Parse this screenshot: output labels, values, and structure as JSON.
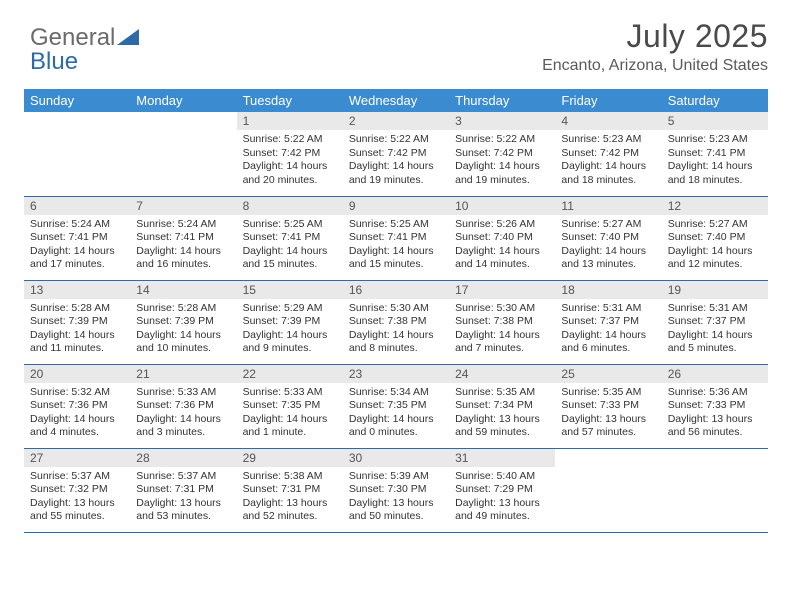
{
  "logo": {
    "word1": "General",
    "word2": "Blue",
    "word1_color": "#6a6a6a",
    "word2_color": "#2f6aa8",
    "triangle_color": "#2f6aa8"
  },
  "header": {
    "title": "July 2025",
    "subtitle": "Encanto, Arizona, United States"
  },
  "colors": {
    "header_bg": "#3b8bd0",
    "header_fg": "#ffffff",
    "daynum_bg": "#e9e9e9",
    "rule": "#2f6aa8"
  },
  "weekdays": [
    "Sunday",
    "Monday",
    "Tuesday",
    "Wednesday",
    "Thursday",
    "Friday",
    "Saturday"
  ],
  "leading_blanks": 2,
  "days": [
    {
      "n": "1",
      "sr": "Sunrise: 5:22 AM",
      "ss": "Sunset: 7:42 PM",
      "dl": "Daylight: 14 hours and 20 minutes."
    },
    {
      "n": "2",
      "sr": "Sunrise: 5:22 AM",
      "ss": "Sunset: 7:42 PM",
      "dl": "Daylight: 14 hours and 19 minutes."
    },
    {
      "n": "3",
      "sr": "Sunrise: 5:22 AM",
      "ss": "Sunset: 7:42 PM",
      "dl": "Daylight: 14 hours and 19 minutes."
    },
    {
      "n": "4",
      "sr": "Sunrise: 5:23 AM",
      "ss": "Sunset: 7:42 PM",
      "dl": "Daylight: 14 hours and 18 minutes."
    },
    {
      "n": "5",
      "sr": "Sunrise: 5:23 AM",
      "ss": "Sunset: 7:41 PM",
      "dl": "Daylight: 14 hours and 18 minutes."
    },
    {
      "n": "6",
      "sr": "Sunrise: 5:24 AM",
      "ss": "Sunset: 7:41 PM",
      "dl": "Daylight: 14 hours and 17 minutes."
    },
    {
      "n": "7",
      "sr": "Sunrise: 5:24 AM",
      "ss": "Sunset: 7:41 PM",
      "dl": "Daylight: 14 hours and 16 minutes."
    },
    {
      "n": "8",
      "sr": "Sunrise: 5:25 AM",
      "ss": "Sunset: 7:41 PM",
      "dl": "Daylight: 14 hours and 15 minutes."
    },
    {
      "n": "9",
      "sr": "Sunrise: 5:25 AM",
      "ss": "Sunset: 7:41 PM",
      "dl": "Daylight: 14 hours and 15 minutes."
    },
    {
      "n": "10",
      "sr": "Sunrise: 5:26 AM",
      "ss": "Sunset: 7:40 PM",
      "dl": "Daylight: 14 hours and 14 minutes."
    },
    {
      "n": "11",
      "sr": "Sunrise: 5:27 AM",
      "ss": "Sunset: 7:40 PM",
      "dl": "Daylight: 14 hours and 13 minutes."
    },
    {
      "n": "12",
      "sr": "Sunrise: 5:27 AM",
      "ss": "Sunset: 7:40 PM",
      "dl": "Daylight: 14 hours and 12 minutes."
    },
    {
      "n": "13",
      "sr": "Sunrise: 5:28 AM",
      "ss": "Sunset: 7:39 PM",
      "dl": "Daylight: 14 hours and 11 minutes."
    },
    {
      "n": "14",
      "sr": "Sunrise: 5:28 AM",
      "ss": "Sunset: 7:39 PM",
      "dl": "Daylight: 14 hours and 10 minutes."
    },
    {
      "n": "15",
      "sr": "Sunrise: 5:29 AM",
      "ss": "Sunset: 7:39 PM",
      "dl": "Daylight: 14 hours and 9 minutes."
    },
    {
      "n": "16",
      "sr": "Sunrise: 5:30 AM",
      "ss": "Sunset: 7:38 PM",
      "dl": "Daylight: 14 hours and 8 minutes."
    },
    {
      "n": "17",
      "sr": "Sunrise: 5:30 AM",
      "ss": "Sunset: 7:38 PM",
      "dl": "Daylight: 14 hours and 7 minutes."
    },
    {
      "n": "18",
      "sr": "Sunrise: 5:31 AM",
      "ss": "Sunset: 7:37 PM",
      "dl": "Daylight: 14 hours and 6 minutes."
    },
    {
      "n": "19",
      "sr": "Sunrise: 5:31 AM",
      "ss": "Sunset: 7:37 PM",
      "dl": "Daylight: 14 hours and 5 minutes."
    },
    {
      "n": "20",
      "sr": "Sunrise: 5:32 AM",
      "ss": "Sunset: 7:36 PM",
      "dl": "Daylight: 14 hours and 4 minutes."
    },
    {
      "n": "21",
      "sr": "Sunrise: 5:33 AM",
      "ss": "Sunset: 7:36 PM",
      "dl": "Daylight: 14 hours and 3 minutes."
    },
    {
      "n": "22",
      "sr": "Sunrise: 5:33 AM",
      "ss": "Sunset: 7:35 PM",
      "dl": "Daylight: 14 hours and 1 minute."
    },
    {
      "n": "23",
      "sr": "Sunrise: 5:34 AM",
      "ss": "Sunset: 7:35 PM",
      "dl": "Daylight: 14 hours and 0 minutes."
    },
    {
      "n": "24",
      "sr": "Sunrise: 5:35 AM",
      "ss": "Sunset: 7:34 PM",
      "dl": "Daylight: 13 hours and 59 minutes."
    },
    {
      "n": "25",
      "sr": "Sunrise: 5:35 AM",
      "ss": "Sunset: 7:33 PM",
      "dl": "Daylight: 13 hours and 57 minutes."
    },
    {
      "n": "26",
      "sr": "Sunrise: 5:36 AM",
      "ss": "Sunset: 7:33 PM",
      "dl": "Daylight: 13 hours and 56 minutes."
    },
    {
      "n": "27",
      "sr": "Sunrise: 5:37 AM",
      "ss": "Sunset: 7:32 PM",
      "dl": "Daylight: 13 hours and 55 minutes."
    },
    {
      "n": "28",
      "sr": "Sunrise: 5:37 AM",
      "ss": "Sunset: 7:31 PM",
      "dl": "Daylight: 13 hours and 53 minutes."
    },
    {
      "n": "29",
      "sr": "Sunrise: 5:38 AM",
      "ss": "Sunset: 7:31 PM",
      "dl": "Daylight: 13 hours and 52 minutes."
    },
    {
      "n": "30",
      "sr": "Sunrise: 5:39 AM",
      "ss": "Sunset: 7:30 PM",
      "dl": "Daylight: 13 hours and 50 minutes."
    },
    {
      "n": "31",
      "sr": "Sunrise: 5:40 AM",
      "ss": "Sunset: 7:29 PM",
      "dl": "Daylight: 13 hours and 49 minutes."
    }
  ]
}
